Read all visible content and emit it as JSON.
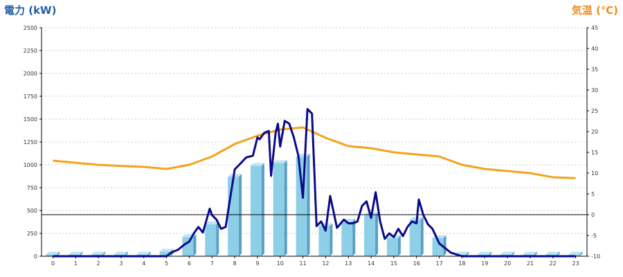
{
  "chart_data": {
    "type": "bar+line",
    "ylabel_left": "電力 (kW)",
    "ylabel_right": "気温 (℃)",
    "ylim_left": [
      0,
      2500
    ],
    "yticks_left": [
      0,
      250,
      500,
      750,
      1000,
      1250,
      1500,
      1750,
      2000,
      2250,
      2500
    ],
    "ylim_right": [
      -10,
      45
    ],
    "yticks_right": [
      -10,
      -5,
      0,
      5,
      10,
      15,
      20,
      25,
      30,
      35,
      40,
      45
    ],
    "grid": "horizontal dotted",
    "categories": [
      "0",
      "1",
      "2",
      "3",
      "4",
      "5",
      "6",
      "7",
      "8",
      "9",
      "10",
      "11",
      "12",
      "13",
      "14",
      "15",
      "16",
      "17",
      "18",
      "19",
      "20",
      "21",
      "22",
      "23"
    ],
    "bars": [
      20,
      20,
      20,
      20,
      20,
      50,
      210,
      350,
      870,
      990,
      1020,
      1090,
      330,
      380,
      450,
      200,
      400,
      200,
      20,
      20,
      20,
      20,
      20,
      20
    ],
    "power_line": {
      "x": [
        0,
        5,
        5.2,
        5.5,
        5.8,
        6,
        6.2,
        6.4,
        6.6,
        6.9,
        7,
        7.2,
        7.4,
        7.6,
        8,
        8.2,
        8.5,
        8.8,
        9,
        9.1,
        9.3,
        9.5,
        9.6,
        9.8,
        9.9,
        10,
        10.2,
        10.4,
        10.6,
        10.8,
        11,
        11.2,
        11.4,
        11.6,
        11.8,
        12,
        12.2,
        12.5,
        12.8,
        13,
        13.2,
        13.4,
        13.6,
        13.8,
        14,
        14.2,
        14.4,
        14.6,
        14.8,
        15,
        15.2,
        15.4,
        15.6,
        15.8,
        16,
        16.1,
        16.3,
        16.5,
        16.7,
        17,
        17.2,
        17.5,
        18,
        23
      ],
      "y": [
        0,
        0,
        40,
        70,
        130,
        160,
        250,
        320,
        260,
        520,
        450,
        400,
        300,
        320,
        950,
        1000,
        1080,
        1100,
        1300,
        1280,
        1350,
        1370,
        880,
        1350,
        1450,
        1200,
        1480,
        1450,
        1300,
        1100,
        640,
        1610,
        1560,
        330,
        380,
        280,
        660,
        310,
        400,
        360,
        360,
        380,
        550,
        600,
        420,
        700,
        380,
        190,
        250,
        210,
        300,
        220,
        320,
        380,
        360,
        620,
        450,
        350,
        300,
        140,
        100,
        40,
        0,
        0
      ]
    },
    "temp_line": {
      "x": [
        0,
        1,
        2,
        3,
        4,
        5,
        6,
        7,
        8,
        9,
        10,
        11,
        12,
        13,
        14,
        15,
        16,
        17,
        18,
        19,
        20,
        21,
        22,
        23
      ],
      "y": [
        13,
        12.5,
        12,
        11.7,
        11.5,
        11,
        12,
        14,
        17,
        19,
        20.5,
        21,
        18.5,
        16.5,
        16,
        15,
        14.5,
        14,
        12,
        11,
        10.5,
        10,
        9,
        8.8
      ]
    },
    "colors": {
      "bar_front": "#8ecfe8",
      "bar_top": "#bfe5f4",
      "bar_side": "#5a9fc4",
      "power_line": "#0a0a8a",
      "temp_line": "#f5a21a",
      "left_label": "#1f5fa8",
      "right_label": "#f08c1e"
    }
  }
}
